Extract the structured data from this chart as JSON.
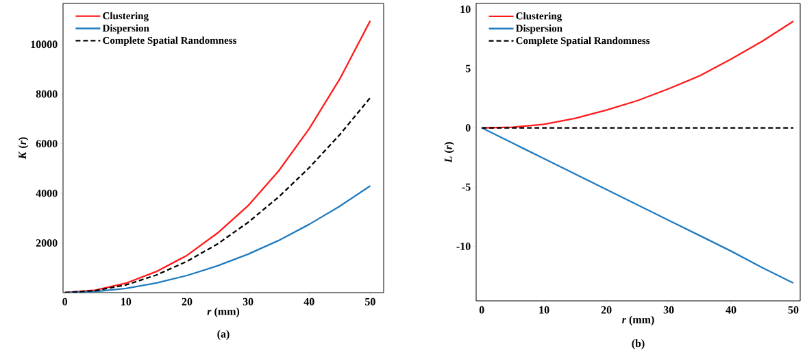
{
  "chart_data": [
    {
      "type": "line",
      "title": "(a)",
      "xlabel": "*r* (mm)",
      "ylabel": "*K* (*r*)",
      "x": [
        0,
        5,
        10,
        15,
        20,
        25,
        30,
        35,
        40,
        45,
        50
      ],
      "series": [
        {
          "name": "Clustering",
          "color": "#ff1a1a",
          "values": [
            0,
            100,
            380,
            850,
            1500,
            2400,
            3500,
            4900,
            6600,
            8600,
            10950
          ]
        },
        {
          "name": "Dispersion",
          "color": "#1f7bc0",
          "values": [
            0,
            45,
            170,
            390,
            690,
            1080,
            1550,
            2100,
            2750,
            3480,
            4300
          ]
        },
        {
          "name": "Complete Spatial Randomness",
          "color": "#000000",
          "line_style": "dashed",
          "values": [
            0,
            80,
            310,
            710,
            1260,
            1960,
            2830,
            3850,
            5030,
            6360,
            7850
          ]
        }
      ],
      "xlim": [
        -0.3,
        52.2
      ],
      "ylim": [
        0,
        11650
      ],
      "xticks": [
        0,
        10,
        20,
        30,
        40,
        50
      ],
      "yticks": [
        2000,
        4000,
        6000,
        8000,
        10000
      ],
      "legend": "top left"
    },
    {
      "type": "line",
      "title": "(b)",
      "xlabel": "*r* (mm)",
      "ylabel": "*L* (*r*)",
      "x": [
        0,
        5,
        10,
        15,
        20,
        25,
        30,
        35,
        40,
        45,
        50
      ],
      "series": [
        {
          "name": "Clustering",
          "color": "#ff1a1a",
          "values": [
            0,
            0.05,
            0.3,
            0.8,
            1.5,
            2.3,
            3.3,
            4.4,
            5.8,
            7.3,
            9.0
          ]
        },
        {
          "name": "Dispersion",
          "color": "#1f7bc0",
          "values": [
            0,
            -1.3,
            -2.6,
            -3.9,
            -5.2,
            -6.5,
            -7.8,
            -9.1,
            -10.4,
            -11.8,
            -13.1
          ]
        },
        {
          "name": "Complete Spatial Randomness",
          "color": "#000000",
          "line_style": "dashed",
          "values": [
            0,
            0,
            0,
            0,
            0,
            0,
            0,
            0,
            0,
            0,
            0
          ]
        }
      ],
      "xlim": [
        -0.9,
        51.1
      ],
      "ylim": [
        -14.6,
        10.5
      ],
      "xticks": [
        0,
        10,
        20,
        30,
        40,
        50
      ],
      "yticks": [
        -10,
        -5,
        0,
        5,
        10
      ],
      "legend": "top left"
    }
  ]
}
